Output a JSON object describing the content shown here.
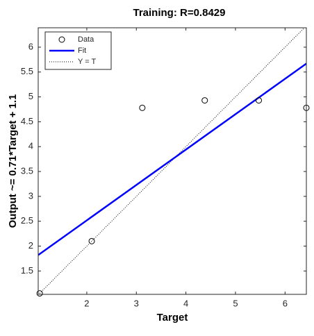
{
  "chart_data": {
    "type": "scatter",
    "title": "Training: R=0.8429",
    "x_label": "Target",
    "y_label": "Output ~= 0.71*Target + 1.1",
    "xlim": [
      1.02,
      6.43
    ],
    "ylim": [
      1.03,
      6.39
    ],
    "xticks": [
      2,
      3,
      4,
      5,
      6
    ],
    "yticks": [
      1.5,
      2,
      2.5,
      3,
      3.5,
      4,
      4.5,
      5,
      5.5,
      6
    ],
    "legend": "upper left",
    "series": [
      {
        "name": "Data",
        "color": "#000000",
        "kind": "markers",
        "x": [
          1.05,
          2.1,
          3.12,
          4.38,
          5.47,
          6.43
        ],
        "values": [
          1.05,
          2.1,
          4.78,
          4.93,
          4.93,
          4.78
        ]
      },
      {
        "name": "Fit",
        "color": "#0000ff",
        "kind": "line",
        "x": [
          1.02,
          6.43
        ],
        "values": [
          1.82,
          5.67
        ]
      },
      {
        "name": "Y = T",
        "color": "#000000",
        "kind": "dotted",
        "x": [
          1.02,
          6.43
        ],
        "values": [
          1.02,
          6.43
        ]
      }
    ]
  }
}
